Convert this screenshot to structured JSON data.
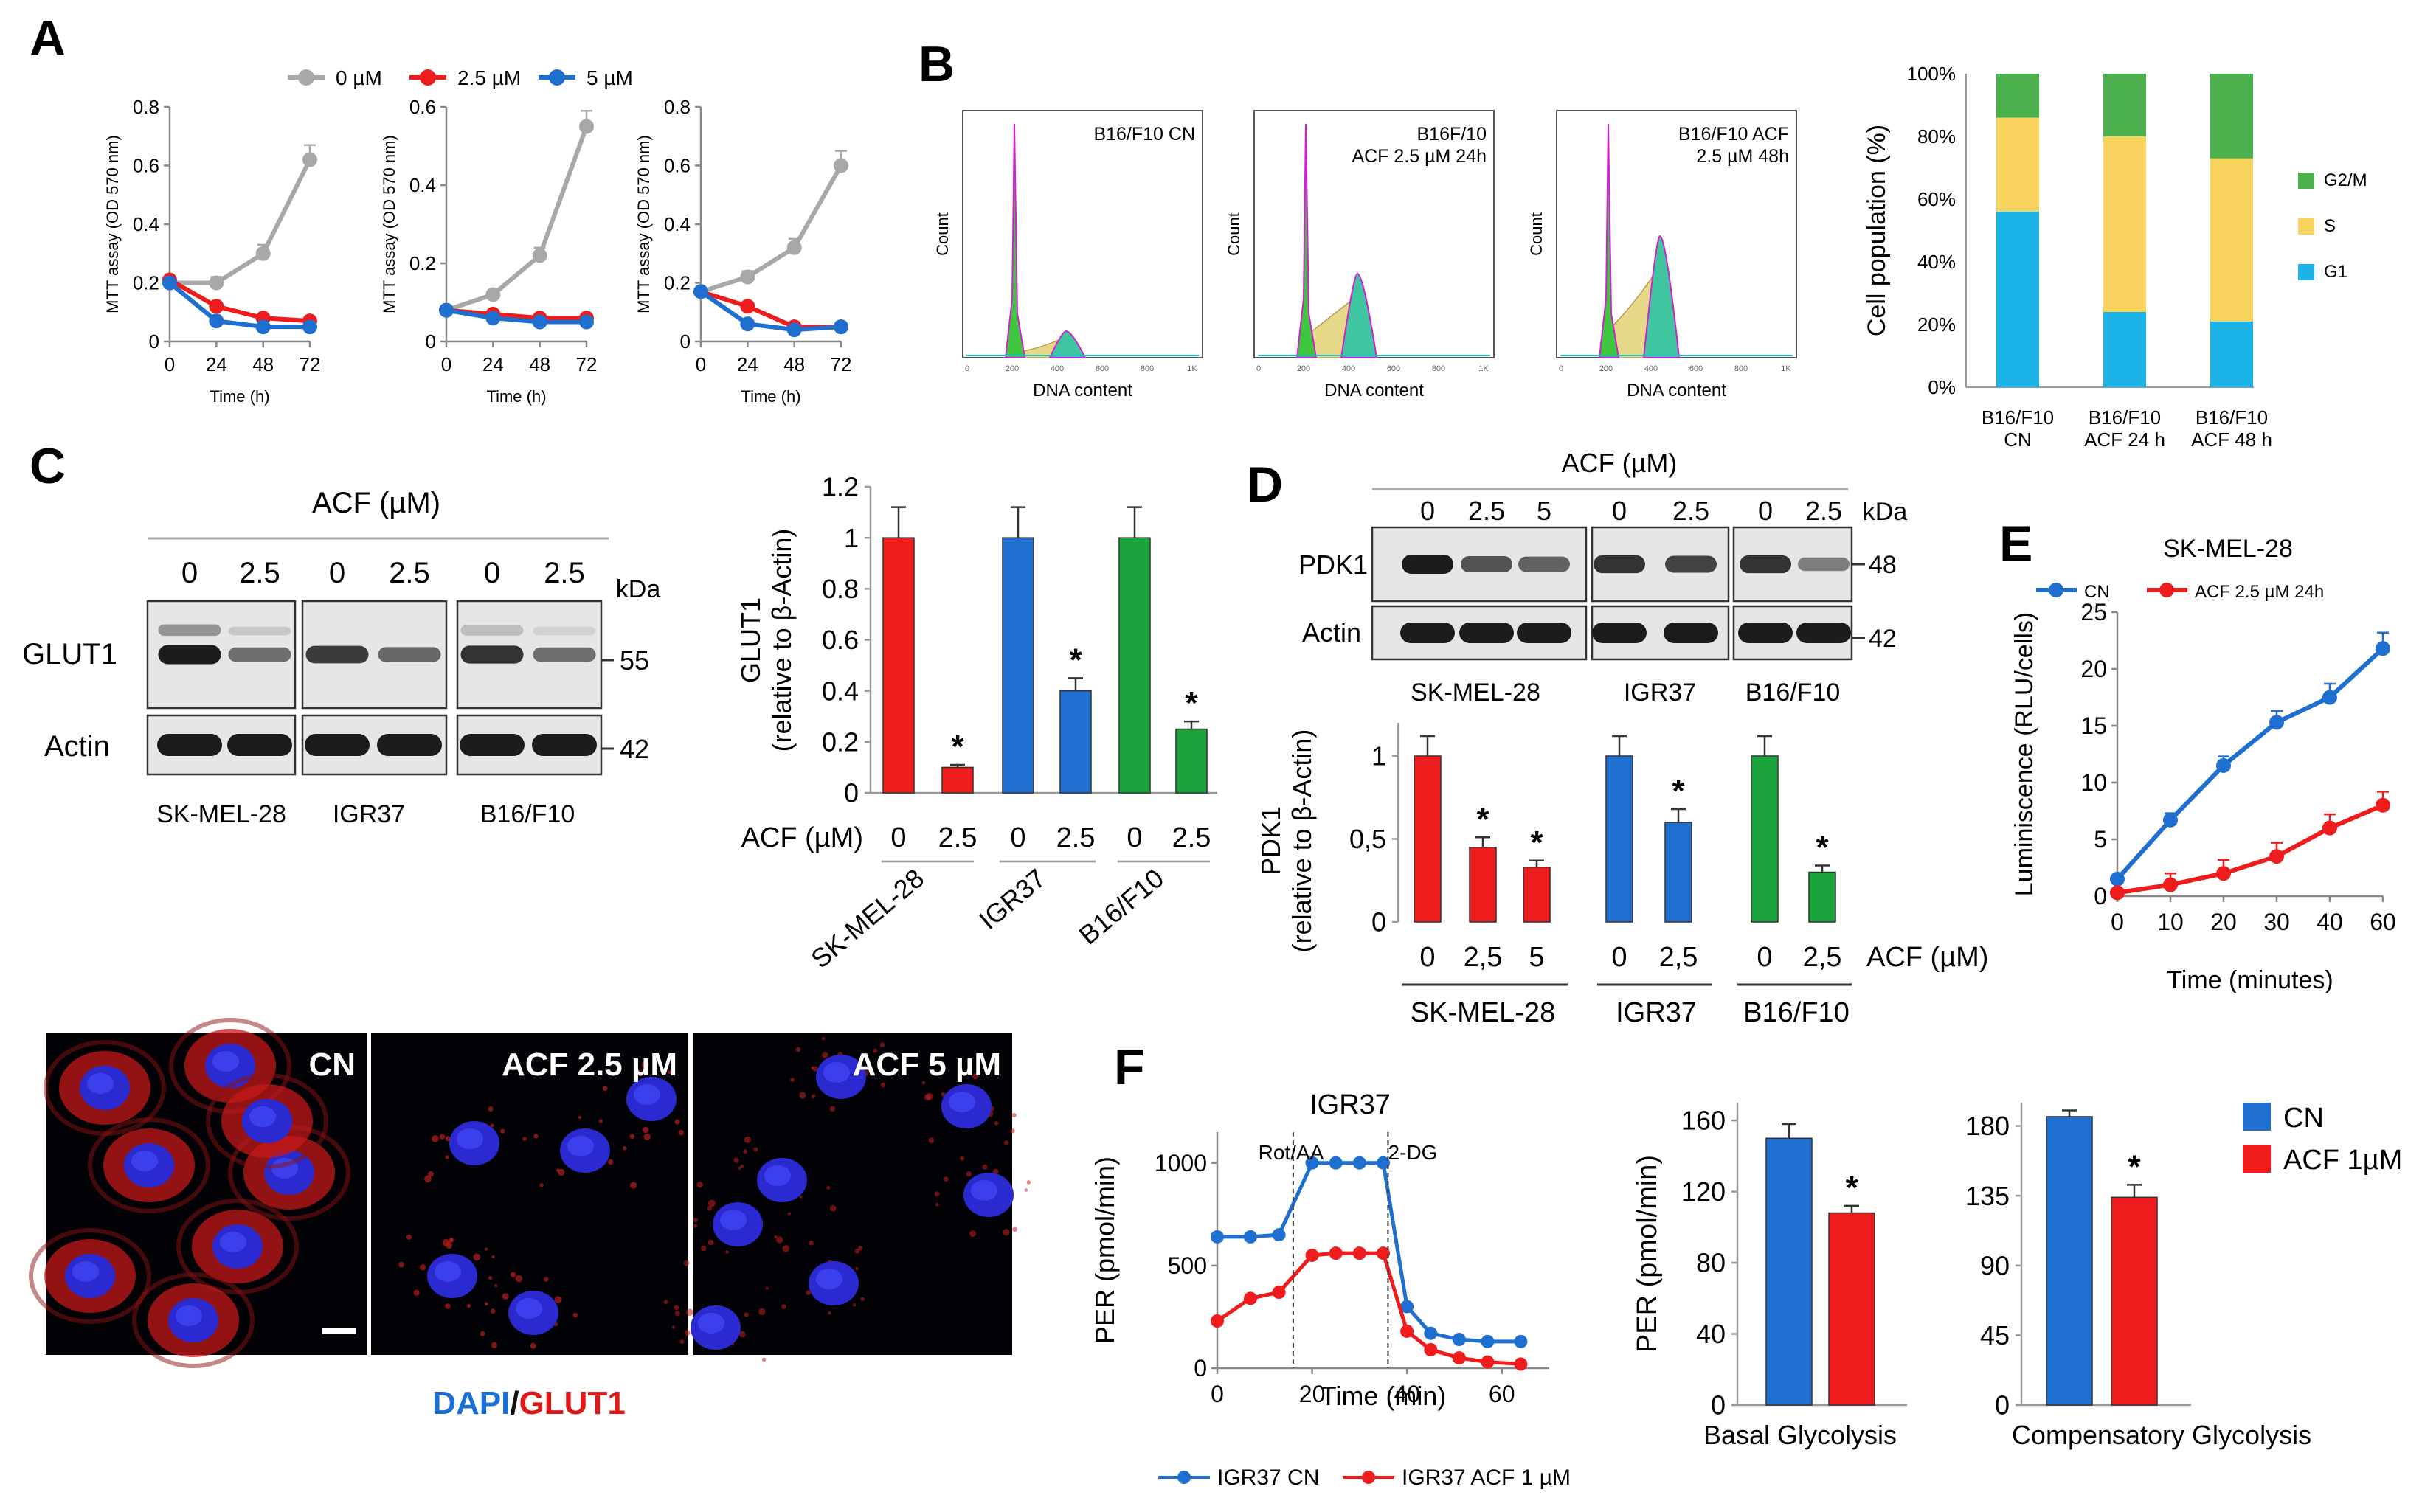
{
  "colors": {
    "gray": "#a8a8a8",
    "red": "#ee1c1c",
    "blue": "#1f6fd0",
    "green": "#1aa33a",
    "g2m": "#4cb14c",
    "s": "#f8d35e",
    "g1": "#1cb3e8",
    "cn_bar": "#1f6fd0",
    "acf_bar": "#ee1c1c"
  },
  "panelA": {
    "label": "A",
    "legend": [
      "0 µM",
      "2.5 µM",
      "5 µM"
    ],
    "plots": [
      {
        "ylabel": "MTT assay (OD 570 nm)",
        "yticks": [
          "0",
          "0.2",
          "0.4",
          "0.6",
          "0.8"
        ],
        "xlabel": "Time (h)"
      },
      {
        "ylabel": "MTT assay (OD 570 nm)",
        "yticks": [
          "0",
          "0.2",
          "0.4",
          "0.6"
        ],
        "xlabel": "Time (h)"
      },
      {
        "ylabel": "MTT assay (OD 570 nm)",
        "yticks": [
          "0",
          "0.2",
          "0.4",
          "0.6",
          "0.8"
        ],
        "xlabel": "Time (h)"
      }
    ],
    "xticks": [
      "0",
      "24",
      "48",
      "72"
    ]
  },
  "panelB": {
    "label": "B",
    "histograms": [
      {
        "title": "B16/F10 CN",
        "ylabel": "Count",
        "xlabel": "DNA content"
      },
      {
        "title": "B16F/10\nACF 2.5 µM 24h",
        "ylabel": "Count",
        "xlabel": "DNA content"
      },
      {
        "title": "B16/F10 ACF\n2.5 µM 48h",
        "ylabel": "Count",
        "xlabel": "DNA content"
      }
    ],
    "hist_xticks": [
      "0",
      "200",
      "400",
      "600",
      "800",
      "1K"
    ],
    "stack": {
      "ylabel": "Cell population (%)",
      "yticks": [
        "0%",
        "20%",
        "40%",
        "60%",
        "80%",
        "100%"
      ],
      "legend": [
        "G2/M",
        "S",
        "G1"
      ],
      "categories": [
        "B16/F10\nCN",
        "B16/F10\nACF 24 h",
        "B16/F10\nACF 48 h"
      ]
    }
  },
  "panelC": {
    "label": "C",
    "blot": {
      "treatment": "ACF (µM)",
      "lane_labels": [
        "0",
        "2.5",
        "0",
        "2.5",
        "0",
        "2.5"
      ],
      "kda": "kDa",
      "rows": [
        "GLUT1",
        "Actin"
      ],
      "markers": [
        "55",
        "42"
      ],
      "cells": [
        "SK-MEL-28",
        "IGR37",
        "B16/F10"
      ]
    },
    "bar": {
      "ylabel": "GLUT1\n(relative to β-Actin)",
      "yticks": [
        "0",
        "0.2",
        "0.4",
        "0.6",
        "0.8",
        "1",
        "1.2"
      ],
      "xrow_label": "ACF (µM)",
      "xticks": [
        "0",
        "2.5",
        "0",
        "2.5",
        "0",
        "2.5"
      ],
      "groups": [
        "SK-MEL-28",
        "IGR37",
        "B16/F10"
      ],
      "star": "*"
    }
  },
  "panelD": {
    "label": "D",
    "blot": {
      "treatment": "ACF (µM)",
      "lane_labels": [
        "0",
        "2.5",
        "5",
        "0",
        "2.5",
        "0",
        "2.5"
      ],
      "kda": "kDa",
      "rows": [
        "PDK1",
        "Actin"
      ],
      "markers": [
        "48",
        "42"
      ],
      "cells": [
        "SK-MEL-28",
        "IGR37",
        "B16/F10"
      ]
    },
    "bar": {
      "ylabel": "PDK1\n(relative to β-Actin)",
      "yticks": [
        "0",
        "0,5",
        "1"
      ],
      "xticks": [
        "0",
        "2,5",
        "5",
        "0",
        "2,5",
        "0",
        "2,5"
      ],
      "xrow_label": "ACF (µM)",
      "groups": [
        "SK-MEL-28",
        "IGR37",
        "B16/F10"
      ],
      "star": "*"
    }
  },
  "panelE": {
    "label": "E",
    "title": "SK-MEL-28",
    "legend": [
      "CN",
      "ACF 2.5 µM 24h"
    ],
    "ylabel": "Luminiscence (RLU/cells)",
    "xlabel": "Time (minutes)",
    "yticks": [
      "0",
      "5",
      "10",
      "15",
      "20",
      "25"
    ],
    "xticks": [
      "0",
      "10",
      "20",
      "30",
      "40",
      "60"
    ]
  },
  "micro": {
    "labels": [
      "CN",
      "ACF 2.5 µM",
      "ACF 5 µM"
    ],
    "stain_dapi": "DAPI",
    "stain_sep": "/",
    "stain_glut1": "GLUT1"
  },
  "panelF": {
    "label": "F",
    "title": "IGR37",
    "annotations": [
      "Rot/AA",
      "2-DG"
    ],
    "ylabel": "PER (pmol/min)",
    "xlabel": "Time (min)",
    "yticks": [
      "0",
      "500",
      "1000"
    ],
    "xticks": [
      "0",
      "20",
      "40",
      "60"
    ],
    "legend": [
      "IGR37 CN",
      "IGR37 ACF 1 µM"
    ],
    "basal": {
      "ylabel": "PER (pmol/min)",
      "yticks": [
        "0",
        "40",
        "80",
        "120",
        "160"
      ],
      "xlabel": "Basal Glycolysis"
    },
    "comp": {
      "yticks": [
        "0",
        "45",
        "90",
        "135",
        "180"
      ],
      "xlabel": "Compensatory Glycolysis"
    },
    "bar_legend": [
      "CN",
      "ACF 1µM"
    ],
    "star": "*"
  },
  "chart_data": [
    {
      "id": "A1",
      "type": "line",
      "title": "",
      "xlabel": "Time (h)",
      "ylabel": "MTT assay (OD 570 nm)",
      "ylim": [
        0,
        0.8
      ],
      "x": [
        0,
        24,
        48,
        72
      ],
      "series": [
        {
          "name": "0 µM",
          "values": [
            0.2,
            0.2,
            0.3,
            0.62
          ],
          "err": [
            0.01,
            0.02,
            0.03,
            0.05
          ]
        },
        {
          "name": "2.5 µM",
          "values": [
            0.21,
            0.12,
            0.08,
            0.07
          ]
        },
        {
          "name": "5 µM",
          "values": [
            0.2,
            0.07,
            0.05,
            0.05
          ]
        }
      ]
    },
    {
      "id": "A2",
      "type": "line",
      "xlabel": "Time (h)",
      "ylabel": "MTT assay (OD 570 nm)",
      "ylim": [
        0,
        0.6
      ],
      "x": [
        0,
        24,
        48,
        72
      ],
      "series": [
        {
          "name": "0 µM",
          "values": [
            0.08,
            0.12,
            0.22,
            0.55
          ],
          "err": [
            0.01,
            0.01,
            0.02,
            0.04
          ]
        },
        {
          "name": "2.5 µM",
          "values": [
            0.08,
            0.07,
            0.06,
            0.06
          ]
        },
        {
          "name": "5 µM",
          "values": [
            0.08,
            0.06,
            0.05,
            0.05
          ]
        }
      ]
    },
    {
      "id": "A3",
      "type": "line",
      "xlabel": "Time (h)",
      "ylabel": "MTT assay (OD 570 nm)",
      "ylim": [
        0,
        0.8
      ],
      "x": [
        0,
        24,
        48,
        72
      ],
      "series": [
        {
          "name": "0 µM",
          "values": [
            0.17,
            0.22,
            0.32,
            0.6
          ],
          "err": [
            0.01,
            0.02,
            0.03,
            0.05
          ]
        },
        {
          "name": "2.5 µM",
          "values": [
            0.17,
            0.12,
            0.05,
            0.05
          ]
        },
        {
          "name": "5 µM",
          "values": [
            0.17,
            0.06,
            0.04,
            0.05
          ]
        }
      ]
    },
    {
      "id": "B-stack",
      "type": "bar",
      "stacked": true,
      "categories": [
        "B16/F10 CN",
        "B16/F10 ACF 24 h",
        "B16/F10 ACF 48 h"
      ],
      "ylabel": "Cell population (%)",
      "ylim": [
        0,
        100
      ],
      "series": [
        {
          "name": "G1",
          "values": [
            56,
            24,
            21
          ]
        },
        {
          "name": "S",
          "values": [
            30,
            56,
            52
          ]
        },
        {
          "name": "G2/M",
          "values": [
            14,
            20,
            27
          ]
        }
      ]
    },
    {
      "id": "C-bar",
      "type": "bar",
      "ylabel": "GLUT1 (relative to β-Actin)",
      "ylim": [
        0,
        1.2
      ],
      "categories": [
        "SK-MEL-28 0",
        "SK-MEL-28 2.5",
        "IGR37 0",
        "IGR37 2.5",
        "B16/F10 0",
        "B16/F10 2.5"
      ],
      "values": [
        1,
        0.1,
        1,
        0.4,
        1,
        0.25
      ],
      "err": [
        0.12,
        0.01,
        0.12,
        0.05,
        0.12,
        0.03
      ]
    },
    {
      "id": "D-bar",
      "type": "bar",
      "ylabel": "PDK1 (relative to β-Actin)",
      "ylim": [
        0,
        1.2
      ],
      "categories": [
        "SK-MEL-28 0",
        "SK-MEL-28 2,5",
        "SK-MEL-28 5",
        "IGR37 0",
        "IGR37 2,5",
        "B16/F10 0",
        "B16/F10 2,5"
      ],
      "values": [
        1,
        0.45,
        0.33,
        1,
        0.6,
        1,
        0.3
      ],
      "err": [
        0.12,
        0.06,
        0.04,
        0.12,
        0.08,
        0.12,
        0.04
      ]
    },
    {
      "id": "E",
      "type": "line",
      "title": "SK-MEL-28",
      "xlabel": "Time (minutes)",
      "ylabel": "Luminiscence (RLU/cells)",
      "ylim": [
        0,
        25
      ],
      "x": [
        0,
        10,
        20,
        30,
        40,
        60
      ],
      "series": [
        {
          "name": "CN",
          "values": [
            1.5,
            6.7,
            11.5,
            15.3,
            17.5,
            21.8
          ],
          "err": [
            0.3,
            0.6,
            0.8,
            1,
            1.2,
            1.4
          ]
        },
        {
          "name": "ACF 2.5 µM 24h",
          "values": [
            0.3,
            1,
            2,
            3.5,
            6,
            8
          ],
          "err": [
            0.3,
            1,
            1.2,
            1.2,
            1.2,
            1.2
          ]
        }
      ]
    },
    {
      "id": "F-line",
      "type": "line",
      "title": "IGR37",
      "xlabel": "Time (min)",
      "ylabel": "PER (pmol/min)",
      "ylim": [
        0,
        1100
      ],
      "x": [
        0,
        7,
        13,
        20,
        25,
        30,
        35,
        40,
        45,
        51,
        57,
        64
      ],
      "series": [
        {
          "name": "IGR37 CN",
          "values": [
            640,
            640,
            650,
            1000,
            1000,
            1000,
            1000,
            300,
            170,
            140,
            130,
            130
          ]
        },
        {
          "name": "IGR37 ACF 1 µM",
          "values": [
            230,
            340,
            370,
            550,
            560,
            560,
            560,
            180,
            90,
            50,
            30,
            20
          ]
        }
      ]
    },
    {
      "id": "F-basal",
      "type": "bar",
      "xlabel": "Basal Glycolysis",
      "ylabel": "PER (pmol/min)",
      "ylim": [
        0,
        170
      ],
      "categories": [
        "CN",
        "ACF 1µM"
      ],
      "values": [
        150,
        108
      ],
      "err": [
        8,
        4
      ]
    },
    {
      "id": "F-comp",
      "type": "bar",
      "xlabel": "Compensatory Glycolysis",
      "ylim": [
        0,
        195
      ],
      "categories": [
        "CN",
        "ACF 1µM"
      ],
      "values": [
        186,
        134
      ],
      "err": [
        4,
        8
      ]
    }
  ]
}
